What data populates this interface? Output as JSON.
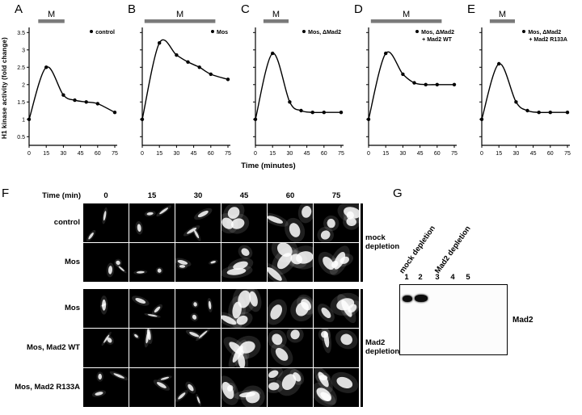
{
  "colors": {
    "background": "#ffffff",
    "foreground": "#000000",
    "m_bar": "#7a7a7a",
    "micrograph_bg": "#000000",
    "blot_band": "#0d0d0d"
  },
  "chart_data": {
    "type": "line",
    "xlabel": "Time (minutes)",
    "ylabel": "H1 kinase activity (fold change)",
    "xticks": [
      "0",
      "15",
      "30",
      "45",
      "60",
      "75"
    ],
    "yticks": [
      "0.5",
      "1",
      "1.5",
      "2",
      "2.5",
      "3",
      "3.5"
    ],
    "xlim": [
      0,
      75
    ],
    "ylim": [
      0.25,
      3.6
    ],
    "m_label": "M",
    "marker": "filled-circle",
    "panels": [
      {
        "letter": "A",
        "legend": [
          "control"
        ],
        "m_span": [
          8,
          31
        ],
        "x": [
          0,
          15,
          30,
          40,
          50,
          60,
          75
        ],
        "y": [
          1.0,
          2.5,
          1.7,
          1.55,
          1.5,
          1.45,
          1.2
        ]
      },
      {
        "letter": "B",
        "legend": [
          "Mos"
        ],
        "m_span": [
          2,
          64
        ],
        "x": [
          0,
          15,
          30,
          40,
          50,
          60,
          75
        ],
        "y": [
          1.0,
          3.2,
          2.85,
          2.65,
          2.5,
          2.3,
          2.15
        ]
      },
      {
        "letter": "C",
        "legend": [
          "Mos, ΔMad2"
        ],
        "m_span": [
          7,
          29
        ],
        "x": [
          0,
          15,
          30,
          40,
          50,
          60,
          75
        ],
        "y": [
          1.0,
          2.9,
          1.5,
          1.25,
          1.2,
          1.2,
          1.2
        ]
      },
      {
        "letter": "D",
        "legend": [
          "Mos, ΔMad2",
          "+ Mad2 WT"
        ],
        "m_span": [
          2,
          64
        ],
        "x": [
          0,
          15,
          30,
          40,
          50,
          60,
          75
        ],
        "y": [
          1.0,
          2.9,
          2.3,
          2.05,
          2.0,
          2.0,
          2.0
        ]
      },
      {
        "letter": "E",
        "legend": [
          "Mos, ΔMad2",
          "+ Mad2 R133A"
        ],
        "m_span": [
          7,
          29
        ],
        "x": [
          0,
          15,
          30,
          40,
          50,
          60,
          75
        ],
        "y": [
          1.0,
          2.6,
          1.5,
          1.25,
          1.2,
          1.2,
          1.2
        ]
      }
    ]
  },
  "panelF": {
    "letter": "F",
    "time_header": "Time (min)",
    "col_labels": [
      "0",
      "15",
      "30",
      "45",
      "60",
      "75"
    ],
    "rows": [
      {
        "label": "control",
        "group": 0
      },
      {
        "label": "Mos",
        "group": 0
      },
      {
        "label": "Mos",
        "group": 1
      },
      {
        "label": "Mos, Mad2 WT",
        "group": 1
      },
      {
        "label": "Mos, Mad2 R133A",
        "group": 1
      }
    ],
    "groups": [
      {
        "label": "mock depletion"
      },
      {
        "label": "Mad2 depletion"
      }
    ]
  },
  "panelG": {
    "letter": "G",
    "group_labels": [
      "mock depletion",
      "Mad2 depletion"
    ],
    "lane_numbers": [
      "1",
      "2",
      "3",
      "4",
      "5"
    ],
    "band_label": "Mad2",
    "bands_in_lanes": [
      1,
      2
    ]
  }
}
